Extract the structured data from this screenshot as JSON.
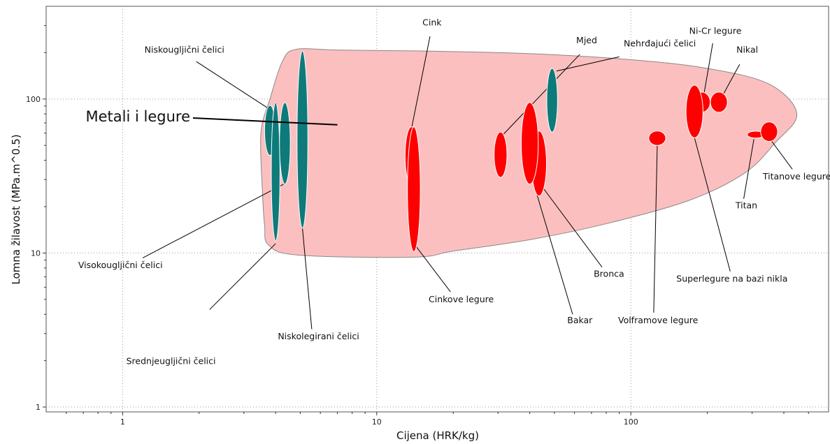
{
  "chart_data": {
    "type": "scatter",
    "title": "",
    "xlabel": "Cijena (HRK/kg)",
    "ylabel": "Lomna žilavost (MPa.m^0.5)",
    "xscale": "log",
    "yscale": "log",
    "xlim": [
      0.5,
      600
    ],
    "ylim": [
      0.93,
      400
    ],
    "grid": true,
    "xticks": [
      {
        "value": 1,
        "label": "1"
      },
      {
        "value": 10,
        "label": "10"
      },
      {
        "value": 100,
        "label": "100"
      }
    ],
    "yticks": [
      {
        "value": 1,
        "label": "1"
      },
      {
        "value": 10,
        "label": "10"
      },
      {
        "value": 100,
        "label": "100"
      }
    ],
    "colors": {
      "steel": "#0e7a7a",
      "nonferrous": "#ff0000",
      "envelope": "#fcbfbf",
      "envelope_stroke": "#888888"
    },
    "envelope": {
      "label": "Metali i legure",
      "label_anchor": {
        "x": 7.0,
        "y": 68
      },
      "outline": [
        [
          3.75,
          11.3
        ],
        [
          4.9,
          9.7
        ],
        [
          14,
          9.4
        ],
        [
          20,
          10.3
        ],
        [
          40,
          12.2
        ],
        [
          80,
          15.5
        ],
        [
          170,
          22
        ],
        [
          280,
          33
        ],
        [
          370,
          52
        ],
        [
          450,
          80
        ],
        [
          350,
          125
        ],
        [
          200,
          158
        ],
        [
          100,
          180
        ],
        [
          40,
          197
        ],
        [
          15,
          205
        ],
        [
          7,
          208
        ],
        [
          4.8,
          210
        ],
        [
          4.25,
          175
        ],
        [
          3.8,
          100
        ],
        [
          3.5,
          60
        ],
        [
          3.55,
          25
        ],
        [
          3.62,
          15
        ]
      ]
    },
    "items": [
      {
        "label": "Niskougljični čelici",
        "group": "steel",
        "x": 3.8,
        "y_low": 43,
        "y_high": 91,
        "rx_factor": 1.05,
        "label_at": {
          "x": 1.75,
          "y": 200
        },
        "anchor": "middle",
        "leader_from": {
          "x": 1.95,
          "y": 175
        },
        "leader_to": {
          "x": 3.7,
          "y": 88
        }
      },
      {
        "label": "Visokougljični čelici",
        "group": "steel",
        "x": 4.0,
        "y_low": 12,
        "y_high": 95,
        "rx_factor": 1.04,
        "label_at": {
          "x": 0.98,
          "y": 8.0
        },
        "anchor": "middle",
        "leader_from": {
          "x": 1.2,
          "y": 9.3
        },
        "leader_to": {
          "x": 4.3,
          "y": 28
        }
      },
      {
        "label": "Srednjeugljični čelici",
        "group": "steel",
        "x": 4.35,
        "y_low": 28,
        "y_high": 95,
        "rx_factor": 1.05,
        "label_at": {
          "x": 1.55,
          "y": 1.9
        },
        "anchor": "middle",
        "leader_from": {
          "x": 2.2,
          "y": 4.3
        },
        "leader_to": {
          "x": 4.0,
          "y": 11.5
        }
      },
      {
        "label": "Niskolegirani čelici",
        "group": "steel",
        "x": 5.1,
        "y_low": 14.5,
        "y_high": 205,
        "rx_factor": 1.05,
        "label_at": {
          "x": 5.9,
          "y": 2.75
        },
        "anchor": "middle",
        "leader_from": {
          "x": 5.55,
          "y": 3.2
        },
        "leader_to": {
          "x": 5.1,
          "y": 14.5
        }
      },
      {
        "label": "Cink",
        "group": "nonferrous",
        "x": 13.7,
        "y_low": 27.5,
        "y_high": 66,
        "rx_factor": 1.06,
        "label_at": {
          "x": 16.5,
          "y": 300
        },
        "anchor": "middle",
        "leader_from": {
          "x": 16.2,
          "y": 255
        },
        "leader_to": {
          "x": 13.5,
          "y": 57
        }
      },
      {
        "label": "Cinkove legure",
        "group": "nonferrous",
        "x": 14.0,
        "y_low": 10.2,
        "y_high": 66,
        "rx_factor": 1.06,
        "label_at": {
          "x": 21.5,
          "y": 4.8
        },
        "anchor": "middle",
        "leader_from": {
          "x": 19.5,
          "y": 5.6
        },
        "leader_to": {
          "x": 14.3,
          "y": 11
        }
      },
      {
        "label": "Mjed",
        "group": "nonferrous",
        "x": 30.7,
        "y_low": 31,
        "y_high": 61,
        "rx_factor": 1.06,
        "label_at": {
          "x": 67,
          "y": 230
        },
        "anchor": "middle",
        "leader_from": {
          "x": 63,
          "y": 195
        },
        "leader_to": {
          "x": 31.2,
          "y": 58
        }
      },
      {
        "label": "Nehrđajući čelici",
        "group": "steel",
        "x": 49,
        "y_low": 61,
        "y_high": 158,
        "rx_factor": 1.05,
        "label_at": {
          "x": 130,
          "y": 220
        },
        "anchor": "middle",
        "leader_from": {
          "x": 90,
          "y": 188
        },
        "leader_to": {
          "x": 51,
          "y": 152
        }
      },
      {
        "label": "Bronca",
        "group": "nonferrous",
        "x": 43.5,
        "y_low": 23.5,
        "y_high": 62,
        "rx_factor": 1.07,
        "label_at": {
          "x": 82,
          "y": 7.0
        },
        "anchor": "middle",
        "leader_from": {
          "x": 77,
          "y": 8.1
        },
        "leader_to": {
          "x": 45.5,
          "y": 26
        }
      },
      {
        "label": "Bakar",
        "group": "nonferrous",
        "x": 40,
        "y_low": 28,
        "y_high": 95,
        "rx_factor": 1.08,
        "label_at": {
          "x": 63,
          "y": 3.5
        },
        "anchor": "middle",
        "leader_from": {
          "x": 59,
          "y": 4.0
        },
        "leader_to": {
          "x": 41,
          "y": 30
        }
      },
      {
        "label": "Volframove legure",
        "group": "nonferrous",
        "x": 127,
        "y_low": 50,
        "y_high": 62,
        "rx_factor": 1.08,
        "label_at": {
          "x": 128,
          "y": 3.5
        },
        "anchor": "middle",
        "leader_from": {
          "x": 123,
          "y": 4.1
        },
        "leader_to": {
          "x": 127,
          "y": 50
        }
      },
      {
        "label": "Ni-Cr legure",
        "group": "nonferrous",
        "x": 190,
        "y_low": 82,
        "y_high": 111,
        "rx_factor": 1.08,
        "label_at": {
          "x": 215,
          "y": 265
        },
        "anchor": "middle",
        "leader_from": {
          "x": 210,
          "y": 230
        },
        "leader_to": {
          "x": 194,
          "y": 108
        }
      },
      {
        "label": "Nikal",
        "group": "nonferrous",
        "x": 222,
        "y_low": 82,
        "y_high": 111,
        "rx_factor": 1.08,
        "label_at": {
          "x": 287,
          "y": 200
        },
        "anchor": "middle",
        "leader_from": {
          "x": 268,
          "y": 168
        },
        "leader_to": {
          "x": 228,
          "y": 103
        }
      },
      {
        "label": "Superlegure na bazi nikla",
        "group": "nonferrous",
        "x": 178,
        "y_low": 56,
        "y_high": 123,
        "rx_factor": 1.08,
        "label_at": {
          "x": 250,
          "y": 6.5
        },
        "anchor": "middle",
        "leader_from": {
          "x": 246,
          "y": 7.6
        },
        "leader_to": {
          "x": 178,
          "y": 56
        }
      },
      {
        "label": "Titan",
        "group": "nonferrous",
        "x": 310,
        "y_low": 56.5,
        "y_high": 61,
        "rx_factor": 1.08,
        "label_at": {
          "x": 285,
          "y": 19.5
        },
        "anchor": "middle",
        "leader_from": {
          "x": 278,
          "y": 22.5
        },
        "leader_to": {
          "x": 305,
          "y": 55
        }
      },
      {
        "label": "Titanove legure",
        "group": "nonferrous",
        "x": 350,
        "y_low": 53,
        "y_high": 71,
        "rx_factor": 1.08,
        "label_at": {
          "x": 450,
          "y": 30
        },
        "anchor": "middle",
        "leader_from": {
          "x": 432,
          "y": 35
        },
        "leader_to": {
          "x": 356,
          "y": 54
        }
      }
    ]
  }
}
